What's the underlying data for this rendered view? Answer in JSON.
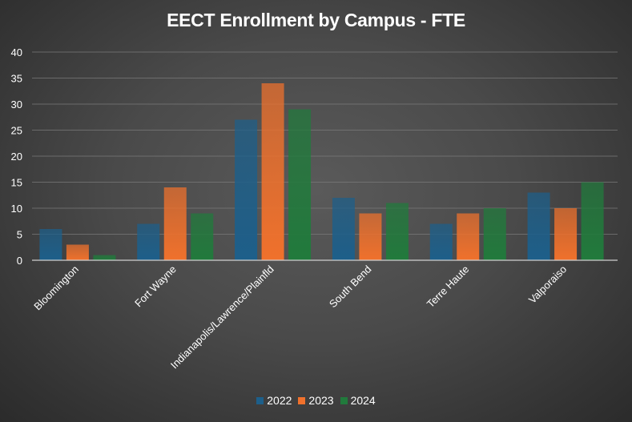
{
  "chart_data": {
    "type": "bar",
    "title": "EECT Enrollment by Campus - FTE",
    "categories": [
      "Bloomington",
      "Fort Wayne",
      "Indianapolis/Lawrence/Plainfld",
      "South Bend",
      "Terre Haute",
      "Valporaiso"
    ],
    "series": [
      {
        "name": "2022",
        "values": [
          6,
          7,
          27,
          12,
          7,
          13
        ],
        "color": "#1d5f8a"
      },
      {
        "name": "2023",
        "values": [
          3,
          14,
          34,
          9,
          9,
          10
        ],
        "color": "#f0712c"
      },
      {
        "name": "2024",
        "values": [
          1,
          9,
          29,
          11,
          10,
          15
        ],
        "color": "#217a3c"
      }
    ],
    "yticks": [
      0,
      5,
      10,
      15,
      20,
      25,
      30,
      35,
      40
    ],
    "ylim": [
      0,
      40
    ],
    "grid": true,
    "legend": "bottom"
  }
}
